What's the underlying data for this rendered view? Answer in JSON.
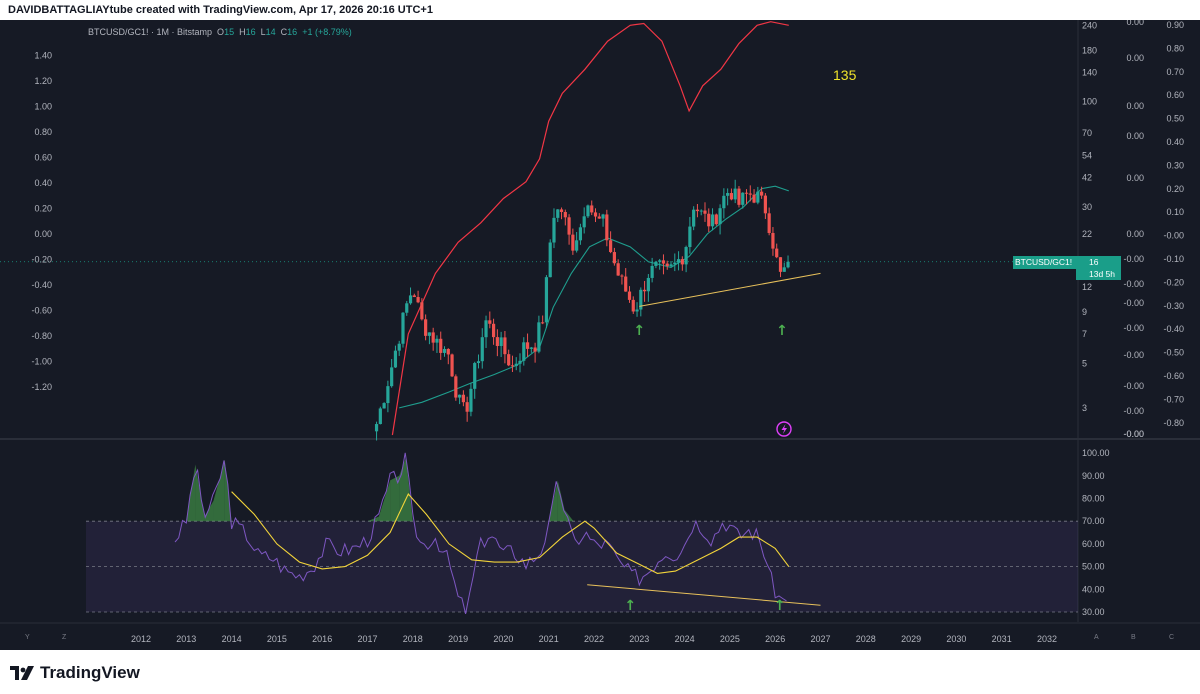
{
  "header": {
    "text": "DAVIDBATTAGLIAYtube created with TradingView.com, Apr 17, 2026 20:16 UTC+1"
  },
  "legend": {
    "symbol": "BTCUSD/GC1! · 1M · Bitstamp",
    "o_label": "O",
    "o": "15",
    "h_label": "H",
    "h": "16",
    "l_label": "L",
    "l": "14",
    "c_label": "C",
    "c": "16",
    "change": "+1 (+8.79%)"
  },
  "price_tag": {
    "symbol": "BTCUSD/GC1!",
    "value": "16",
    "countdown": "13d 5h"
  },
  "annotation": "135",
  "branding": "TradingView",
  "colors": {
    "background": "#161a25",
    "up": "#26a69a",
    "down": "#ef5350",
    "upper_band": "#f23645",
    "basis": "#1f9e8e",
    "trendline": "#e8c15b",
    "rsi": "#7e57c2",
    "rsi_ma": "#f2d43a",
    "rsi_band": "#7e57c2",
    "overbought_fill": "#4caf50"
  },
  "corner_labels": {
    "y": "Y",
    "z": "Z",
    "a": "A",
    "b": "B",
    "c": "C"
  },
  "chart_data": [
    {
      "type": "candlestick",
      "symbol": "BTCUSD/GC1!",
      "timeframe": "1M",
      "y_scale": "log",
      "right_axis_ticks": [
        "240",
        "180",
        "140",
        "100",
        "70",
        "54",
        "42",
        "30",
        "22",
        "16",
        "12",
        "9",
        "7",
        "5",
        "3"
      ],
      "left_axis_ticks": [
        "1.40",
        "1.20",
        "1.00",
        "0.80",
        "0.60",
        "0.40",
        "0.20",
        "0.00",
        "-0.20",
        "-0.40",
        "-0.60",
        "-0.80",
        "-1.00",
        "-1.20"
      ],
      "extra_axis_1_ticks": [
        "0.00",
        "0.00",
        "0.00",
        "0.00",
        "0.00",
        "0.00",
        "-0.00",
        "-0.00",
        "-0.00",
        "-0.00",
        "-0.00",
        "-0.00",
        "-0.00",
        "-0.00",
        "-0.00"
      ],
      "extra_axis_2_ticks": [
        "0.90",
        "0.80",
        "0.70",
        "0.60",
        "0.50",
        "0.40",
        "0.30",
        "0.20",
        "0.10",
        "-0.00",
        "-0.10",
        "-0.20",
        "-0.30",
        "-0.40",
        "-0.50",
        "-0.60",
        "-0.70",
        "-0.80"
      ],
      "x_ticks": [
        "2012",
        "2013",
        "2014",
        "2015",
        "2016",
        "2017",
        "2018",
        "2019",
        "2020",
        "2021",
        "2022",
        "2023",
        "2024",
        "2025",
        "2026",
        "2027",
        "2028",
        "2029",
        "2030",
        "2031",
        "2032"
      ],
      "close_anchors": [
        [
          2017.2,
          2.5
        ],
        [
          2017.5,
          4.5
        ],
        [
          2017.85,
          9.5
        ],
        [
          2018.0,
          12
        ],
        [
          2018.2,
          8
        ],
        [
          2018.5,
          6.5
        ],
        [
          2018.8,
          5.5
        ],
        [
          2019.0,
          3.3
        ],
        [
          2019.15,
          2.8
        ],
        [
          2019.45,
          5.5
        ],
        [
          2019.6,
          8.2
        ],
        [
          2019.8,
          7
        ],
        [
          2020.0,
          5.8
        ],
        [
          2020.2,
          4.8
        ],
        [
          2020.45,
          6
        ],
        [
          2020.7,
          6.3
        ],
        [
          2020.9,
          9
        ],
        [
          2021.0,
          17
        ],
        [
          2021.1,
          28
        ],
        [
          2021.3,
          29
        ],
        [
          2021.5,
          19
        ],
        [
          2021.7,
          24
        ],
        [
          2021.85,
          35
        ],
        [
          2022.0,
          26
        ],
        [
          2022.2,
          25
        ],
        [
          2022.4,
          17
        ],
        [
          2022.55,
          13.5
        ],
        [
          2022.7,
          11.5
        ],
        [
          2022.9,
          9.2
        ],
        [
          2023.0,
          10.5
        ],
        [
          2023.2,
          14
        ],
        [
          2023.4,
          15
        ],
        [
          2023.6,
          14
        ],
        [
          2023.8,
          15.5
        ],
        [
          2024.0,
          18
        ],
        [
          2024.2,
          31
        ],
        [
          2024.4,
          27
        ],
        [
          2024.6,
          24.5
        ],
        [
          2024.85,
          33
        ],
        [
          2025.0,
          37
        ],
        [
          2025.2,
          31
        ],
        [
          2025.4,
          35
        ],
        [
          2025.6,
          34
        ],
        [
          2025.8,
          29
        ],
        [
          2025.9,
          23
        ],
        [
          2026.1,
          13.5
        ],
        [
          2026.2,
          14.5
        ],
        [
          2026.3,
          16
        ]
      ],
      "upper_band": [
        [
          2017.55,
          2.2
        ],
        [
          2017.9,
          7
        ],
        [
          2018.5,
          14
        ],
        [
          2019.0,
          20
        ],
        [
          2019.5,
          25
        ],
        [
          2020.0,
          33
        ],
        [
          2020.5,
          40
        ],
        [
          2020.8,
          52
        ],
        [
          2021.0,
          80
        ],
        [
          2021.3,
          110
        ],
        [
          2021.8,
          145
        ],
        [
          2022.3,
          200
        ],
        [
          2022.8,
          240
        ],
        [
          2023.1,
          245
        ],
        [
          2023.5,
          200
        ],
        [
          2023.9,
          120
        ],
        [
          2024.1,
          90
        ],
        [
          2024.4,
          120
        ],
        [
          2024.8,
          145
        ],
        [
          2025.2,
          195
        ],
        [
          2025.6,
          240
        ],
        [
          2025.9,
          250
        ],
        [
          2026.3,
          240
        ]
      ],
      "basis": [
        [
          2017.7,
          3
        ],
        [
          2018.2,
          3.2
        ],
        [
          2018.8,
          3.6
        ],
        [
          2019.3,
          4.0
        ],
        [
          2019.8,
          4.4
        ],
        [
          2020.3,
          4.9
        ],
        [
          2020.8,
          6.0
        ],
        [
          2021.1,
          9.5
        ],
        [
          2021.5,
          14
        ],
        [
          2021.9,
          19
        ],
        [
          2022.3,
          21
        ],
        [
          2022.8,
          19
        ],
        [
          2023.2,
          16
        ],
        [
          2023.7,
          15
        ],
        [
          2024.1,
          17
        ],
        [
          2024.5,
          22
        ],
        [
          2024.9,
          26
        ],
        [
          2025.3,
          30
        ],
        [
          2025.7,
          37
        ],
        [
          2026.0,
          38
        ],
        [
          2026.3,
          36
        ]
      ],
      "trendline": [
        [
          2023.0,
          9.6
        ],
        [
          2027.0,
          14
        ]
      ],
      "markers": [
        {
          "x": 2023.0,
          "label": "↑"
        },
        {
          "x": 2026.15,
          "label": "↑"
        }
      ]
    },
    {
      "type": "line",
      "name": "RSI",
      "y_ticks": [
        "100.00",
        "90.00",
        "80.00",
        "70.00",
        "60.00",
        "50.00",
        "40.00",
        "30.00"
      ],
      "levels": [
        70,
        50,
        30
      ],
      "x": [
        2012.75,
        2013.0,
        2013.2,
        2013.4,
        2013.6,
        2013.85,
        2014.0,
        2014.3,
        2014.6,
        2014.9,
        2015.2,
        2015.5,
        2015.8,
        2016.1,
        2016.4,
        2016.7,
        2017.0,
        2017.25,
        2017.5,
        2017.7,
        2017.85,
        2018.0,
        2018.2,
        2018.5,
        2018.8,
        2019.0,
        2019.2,
        2019.45,
        2019.7,
        2020.0,
        2020.2,
        2020.5,
        2020.8,
        2021.0,
        2021.2,
        2021.35,
        2021.55,
        2021.8,
        2022.0,
        2022.3,
        2022.55,
        2022.8,
        2023.0,
        2023.2,
        2023.4,
        2023.6,
        2023.8,
        2024.0,
        2024.2,
        2024.4,
        2024.6,
        2024.85,
        2025.0,
        2025.2,
        2025.4,
        2025.6,
        2025.8,
        2025.95,
        2026.1,
        2026.2,
        2026.3
      ],
      "values": [
        62,
        70,
        95,
        72,
        79,
        97,
        70,
        65,
        55,
        54,
        48,
        46,
        50,
        60,
        57,
        58,
        62,
        72,
        88,
        90,
        98,
        70,
        59,
        63,
        52,
        36,
        30,
        58,
        65,
        56,
        57,
        51,
        56,
        67,
        88,
        75,
        60,
        65,
        60,
        60,
        52,
        47,
        45,
        48,
        53,
        57,
        55,
        60,
        70,
        67,
        62,
        70,
        68,
        63,
        66,
        64,
        54,
        41,
        36,
        35,
        40
      ],
      "ma_x": [
        2014.0,
        2014.5,
        2015.0,
        2015.5,
        2016.0,
        2016.5,
        2017.0,
        2017.5,
        2017.9,
        2018.3,
        2018.8,
        2019.3,
        2019.8,
        2020.3,
        2020.8,
        2021.3,
        2021.8,
        2022.0,
        2022.5,
        2023.0,
        2023.4,
        2023.8,
        2024.3,
        2024.8,
        2025.2,
        2025.6,
        2026.0,
        2026.3
      ],
      "ma_values": [
        83,
        73,
        60,
        52,
        49,
        50,
        55,
        65,
        82,
        73,
        60,
        53,
        52,
        52,
        54,
        63,
        70,
        67,
        56,
        51,
        47,
        48,
        53,
        58,
        63,
        63,
        58,
        50
      ],
      "trendline": [
        [
          2021.85,
          42
        ],
        [
          2027.0,
          33
        ]
      ],
      "markers": [
        {
          "x": 2022.8,
          "label": "↑"
        },
        {
          "x": 2026.1,
          "label": "↑"
        }
      ]
    }
  ]
}
